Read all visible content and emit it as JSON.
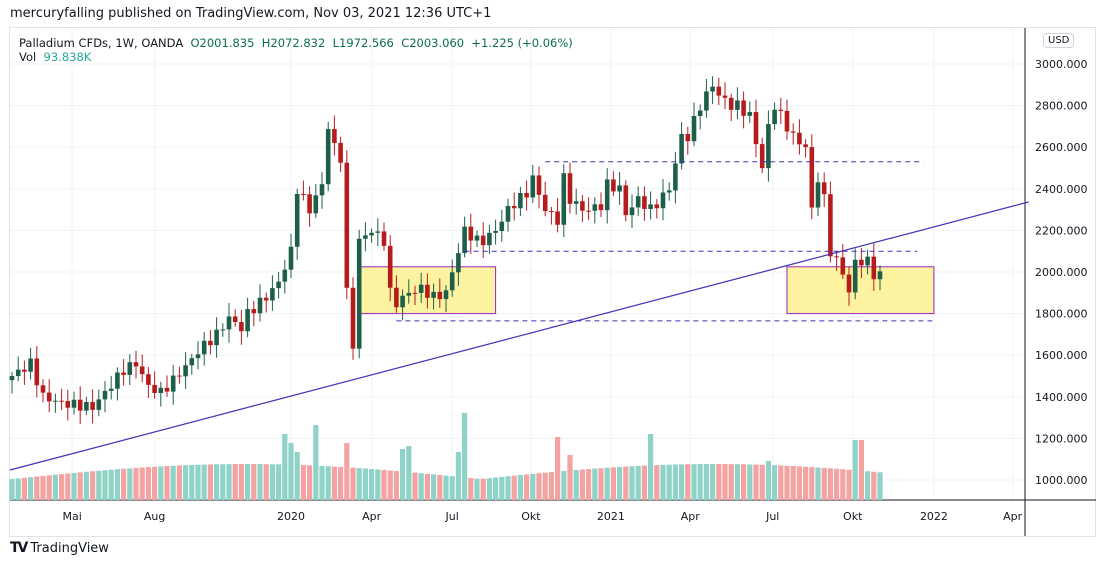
{
  "header": {
    "published": "mercuryfalling published on TradingView.com, Nov 03, 2021 12:36 UTC+1"
  },
  "legend": {
    "symbol": "Palladium CFDs, 1W, OANDA",
    "open": "O2001.835",
    "high": "H2072.832",
    "low": "L1972.566",
    "close": "C2003.060",
    "change": "+1.225 (+0.06%)",
    "vol_label": "Vol",
    "vol_value": "93.838K"
  },
  "currency": "USD",
  "brand": "TradingView",
  "chart_data": {
    "type": "candlestick",
    "ylim": [
      800,
      3250
    ],
    "y_ticks": [
      "3000.000",
      "2800.000",
      "2600.000",
      "2400.000",
      "2200.000",
      "2000.000",
      "1800.000",
      "1600.000",
      "1400.000",
      "1200.000",
      "1000.000"
    ],
    "x_ticks": [
      {
        "label": "Mai",
        "week": 9.7
      },
      {
        "label": "Aug",
        "week": 23
      },
      {
        "label": "2020",
        "week": 45
      },
      {
        "label": "Apr",
        "week": 58
      },
      {
        "label": "Jul",
        "week": 71
      },
      {
        "label": "Okt",
        "week": 83.7
      },
      {
        "label": "2021",
        "week": 96.6
      },
      {
        "label": "Apr",
        "week": 109.4
      },
      {
        "label": "Jul",
        "week": 122.7
      },
      {
        "label": "Okt",
        "week": 135.6
      },
      {
        "label": "2022",
        "week": 148.7
      },
      {
        "label": "Apr",
        "week": 161.4
      }
    ],
    "weekly_close_anchors": [
      [
        0,
        1500
      ],
      [
        3,
        1560
      ],
      [
        5,
        1400
      ],
      [
        8,
        1370
      ],
      [
        13,
        1350
      ],
      [
        15,
        1420
      ],
      [
        18,
        1530
      ],
      [
        20,
        1560
      ],
      [
        22,
        1450
      ],
      [
        24,
        1420
      ],
      [
        26,
        1480
      ],
      [
        29,
        1580
      ],
      [
        30,
        1620
      ],
      [
        33,
        1700
      ],
      [
        35,
        1780
      ],
      [
        37,
        1730
      ],
      [
        38,
        1800
      ],
      [
        41,
        1880
      ],
      [
        43,
        1950
      ],
      [
        45,
        2100
      ],
      [
        46,
        2400
      ],
      [
        48,
        2300
      ],
      [
        50,
        2420
      ],
      [
        51,
        2700
      ],
      [
        52,
        2600
      ],
      [
        53,
        2550
      ],
      [
        54,
        1900
      ],
      [
        55,
        1650
      ],
      [
        56,
        2150
      ],
      [
        58,
        2200
      ],
      [
        60,
        2150
      ],
      [
        61,
        1900
      ],
      [
        62,
        1850
      ],
      [
        64,
        1900
      ],
      [
        66,
        1920
      ],
      [
        68,
        1880
      ],
      [
        70,
        1900
      ],
      [
        71,
        2000
      ],
      [
        73,
        2200
      ],
      [
        75,
        2150
      ],
      [
        76,
        2150
      ],
      [
        78,
        2200
      ],
      [
        80,
        2300
      ],
      [
        81,
        2330
      ],
      [
        83,
        2380
      ],
      [
        84,
        2450
      ],
      [
        86,
        2300
      ],
      [
        88,
        2250
      ],
      [
        89,
        2450
      ],
      [
        90,
        2350
      ],
      [
        92,
        2300
      ],
      [
        93,
        2300
      ],
      [
        95,
        2320
      ],
      [
        96,
        2420
      ],
      [
        98,
        2400
      ],
      [
        99,
        2280
      ],
      [
        101,
        2350
      ],
      [
        103,
        2300
      ],
      [
        104,
        2330
      ],
      [
        106,
        2400
      ],
      [
        108,
        2650
      ],
      [
        109,
        2650
      ],
      [
        111,
        2800
      ],
      [
        113,
        2900
      ],
      [
        114,
        2850
      ],
      [
        116,
        2800
      ],
      [
        117,
        2800
      ],
      [
        119,
        2750
      ],
      [
        121,
        2500
      ],
      [
        122,
        2700
      ],
      [
        123,
        2800
      ],
      [
        125,
        2700
      ],
      [
        126,
        2650
      ],
      [
        128,
        2600
      ],
      [
        129,
        2300
      ],
      [
        130,
        2450
      ],
      [
        131,
        2350
      ],
      [
        132,
        2100
      ],
      [
        134,
        2000
      ],
      [
        135,
        1900
      ],
      [
        136,
        2050
      ],
      [
        138,
        2050
      ],
      [
        139,
        1990
      ],
      [
        140,
        2003.06
      ]
    ],
    "volume_spikes": [
      [
        44,
        2.2
      ],
      [
        45,
        1.9
      ],
      [
        46,
        1.6
      ],
      [
        49,
        2.5
      ],
      [
        54,
        1.9
      ],
      [
        63,
        1.7
      ],
      [
        64,
        1.8
      ],
      [
        72,
        1.6
      ],
      [
        73,
        2.9
      ],
      [
        88,
        2.1
      ],
      [
        90,
        1.5
      ],
      [
        103,
        2.2
      ],
      [
        122,
        1.3
      ],
      [
        136,
        2.0
      ],
      [
        137,
        2.0
      ]
    ],
    "trendline": [
      [
        0,
        1048
      ],
      [
        164,
        2337
      ]
    ],
    "levels": [
      {
        "price": 2530,
        "from": 86,
        "to": 147
      },
      {
        "price": 2100,
        "from": 73,
        "to": 146
      },
      {
        "price": 1765,
        "from": 62,
        "to": 148.5
      }
    ],
    "zones": [
      {
        "from": 56,
        "to": 78,
        "top": 2025,
        "bottom": 1800
      },
      {
        "from": 125,
        "to": 148.7,
        "top": 2025,
        "bottom": 1800
      }
    ],
    "colors": {
      "up": "#1e5f4a",
      "down": "#b71c1c",
      "vol_up": "#8fd3c8",
      "vol_down": "#f4a3a3",
      "trend": "#3f32b8",
      "zone_fill": "#fbf3a0",
      "zone_border": "#a020c0"
    }
  }
}
